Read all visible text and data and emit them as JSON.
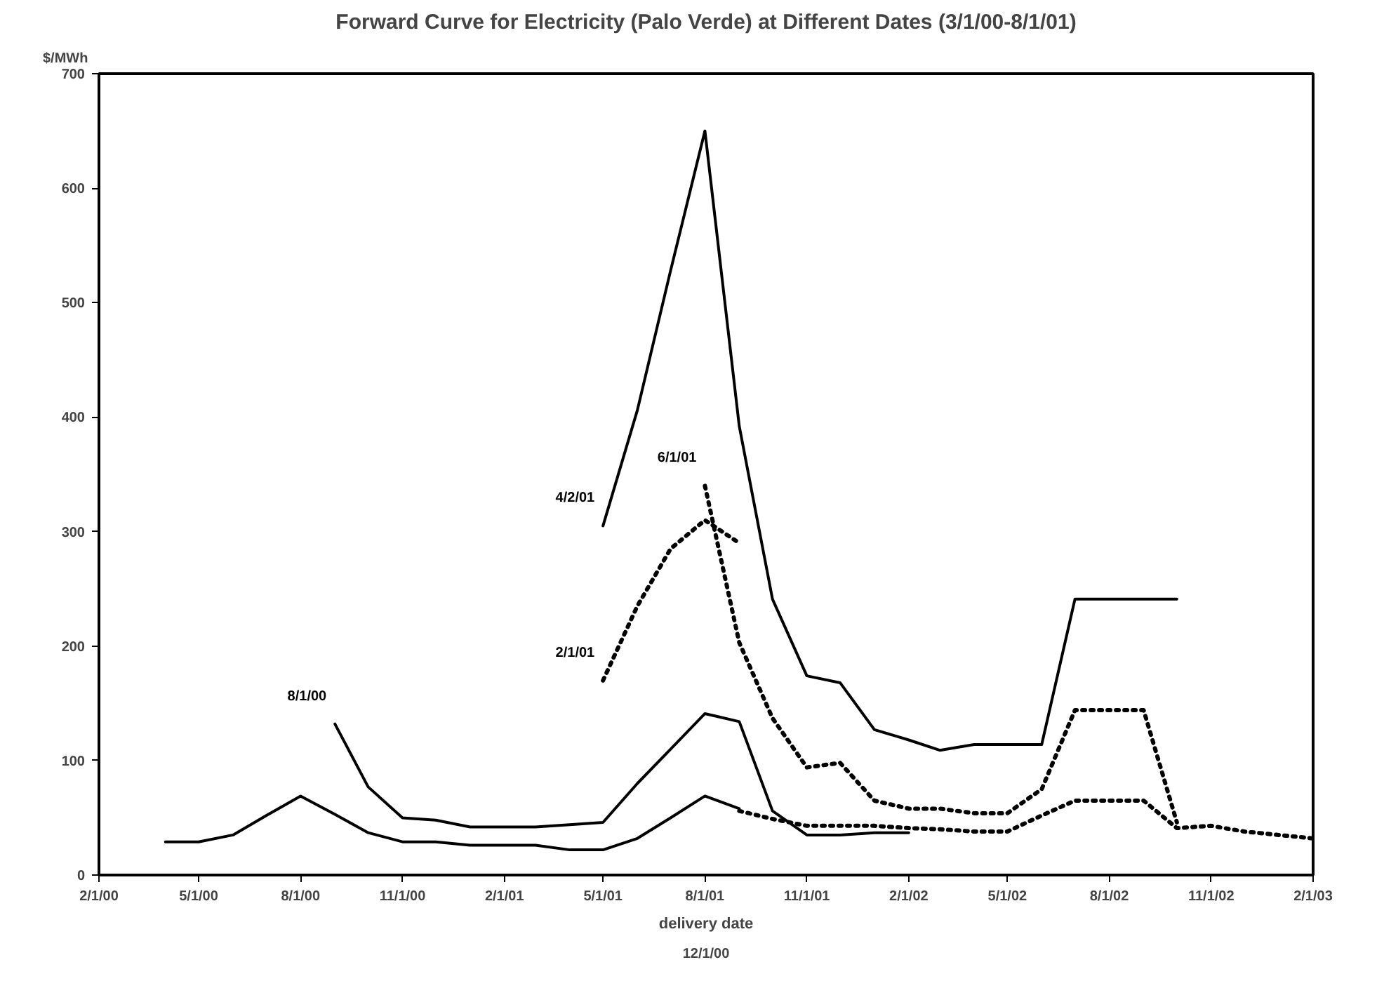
{
  "chart_data": {
    "type": "line",
    "title": "Forward Curve for Electricity (Palo Verde) at Different Dates (3/1/00-8/1/01)",
    "xlabel": "delivery date",
    "ylabel": "$/MWh",
    "series": [
      {
        "color": "#000000",
        "line_style": "solid",
        "x": [
          "2000-04-01",
          "2000-05-01",
          "2000-06-01",
          "2000-07-01",
          "2000-08-01",
          "2000-09-01",
          "2000-10-01",
          "2000-11-01",
          "2000-12-01",
          "2001-01-01",
          "2001-02-01",
          "2001-03-01",
          "2001-04-01",
          "2001-05-01",
          "2001-06-01",
          "2001-07-01",
          "2001-08-01",
          "2001-09-01"
        ],
        "values": [
          29,
          29,
          35,
          52,
          69,
          53,
          37,
          29,
          29,
          26,
          26,
          26,
          22,
          22,
          32,
          50,
          69,
          58
        ]
      },
      {
        "name": "8/1/00",
        "color": "#000000",
        "line_style": "solid",
        "x": [
          "2000-09-01",
          "2000-10-01",
          "2000-11-01",
          "2000-12-01",
          "2001-01-01",
          "2001-02-01",
          "2001-03-01",
          "2001-04-01",
          "2001-05-01",
          "2001-06-01",
          "2001-07-01",
          "2001-08-01",
          "2001-09-01",
          "2001-10-01",
          "2001-11-01",
          "2001-12-01",
          "2002-01-01",
          "2002-02-01"
        ],
        "values": [
          132,
          77,
          50,
          48,
          42,
          42,
          42,
          44,
          46,
          80,
          110,
          141,
          134,
          56,
          35,
          35,
          37,
          37
        ]
      },
      {
        "name": "2/1/01",
        "color": "#000000",
        "line_style": "dotted",
        "x": [
          "2001-05-01",
          "2001-06-01",
          "2001-07-01",
          "2001-08-01",
          "2001-09-01"
        ],
        "values": [
          170,
          235,
          285,
          310,
          290
        ]
      },
      {
        "name": "4/2/01",
        "color": "#000000",
        "line_style": "solid",
        "x": [
          "2001-05-01",
          "2001-06-01",
          "2001-07-01",
          "2001-08-01",
          "2001-09-01",
          "2001-10-01",
          "2001-11-01",
          "2001-12-01",
          "2002-01-01",
          "2002-02-01",
          "2002-03-01",
          "2002-04-01",
          "2002-05-01",
          "2002-06-01",
          "2002-07-01",
          "2002-08-01",
          "2002-09-01",
          "2002-10-01"
        ],
        "values": [
          305,
          406,
          528,
          650,
          392,
          241,
          174,
          168,
          127,
          118,
          109,
          114,
          114,
          114,
          241,
          241,
          241,
          241
        ]
      },
      {
        "name": "6/1/01",
        "color": "#000000",
        "line_style": "dotted",
        "x": [
          "2001-08-01",
          "2001-09-01",
          "2001-10-01",
          "2001-11-01",
          "2001-12-01",
          "2002-01-01",
          "2002-02-01",
          "2002-03-01",
          "2002-04-01",
          "2002-05-01",
          "2002-06-01",
          "2002-07-01",
          "2002-08-01",
          "2002-09-01",
          "2002-10-01"
        ],
        "values": [
          340,
          203,
          137,
          94,
          98,
          65,
          58,
          58,
          54,
          54,
          75,
          144,
          144,
          144,
          46
        ]
      },
      {
        "color": "#000000",
        "line_style": "dotted",
        "x": [
          "2001-09-01",
          "2001-10-01",
          "2001-11-01",
          "2001-12-01",
          "2002-01-01",
          "2002-02-01",
          "2002-03-01",
          "2002-04-01",
          "2002-05-01",
          "2002-06-01",
          "2002-07-01",
          "2002-08-01",
          "2002-09-01",
          "2002-10-01",
          "2002-11-01",
          "2002-12-01",
          "2003-01-01",
          "2003-02-01"
        ],
        "values": [
          56,
          49,
          43,
          43,
          43,
          41,
          40,
          38,
          38,
          52,
          65,
          65,
          65,
          41,
          43,
          38,
          35,
          32
        ]
      }
    ],
    "annotations": [
      "12/1/00"
    ],
    "xlim": [
      "2000-02-01",
      "2003-02-01"
    ],
    "ylim": [
      0,
      700
    ],
    "yticks": [
      0,
      100,
      200,
      300,
      400,
      500,
      600,
      700
    ],
    "xticks": [
      {
        "value": "2000-02-01",
        "label": "2/1/00"
      },
      {
        "value": "2000-05-01",
        "label": "5/1/00"
      },
      {
        "value": "2000-08-01",
        "label": "8/1/00"
      },
      {
        "value": "2000-11-01",
        "label": "11/1/00"
      },
      {
        "value": "2001-02-01",
        "label": "2/1/01"
      },
      {
        "value": "2001-05-01",
        "label": "5/1/01"
      },
      {
        "value": "2001-08-01",
        "label": "8/1/01"
      },
      {
        "value": "2001-11-01",
        "label": "11/1/01"
      },
      {
        "value": "2002-02-01",
        "label": "2/1/02"
      },
      {
        "value": "2002-05-01",
        "label": "5/1/02"
      },
      {
        "value": "2002-08-01",
        "label": "8/1/02"
      },
      {
        "value": "2002-11-01",
        "label": "11/1/02"
      },
      {
        "value": "2003-02-01",
        "label": "2/1/03"
      }
    ],
    "grid": false,
    "marker": "none"
  }
}
